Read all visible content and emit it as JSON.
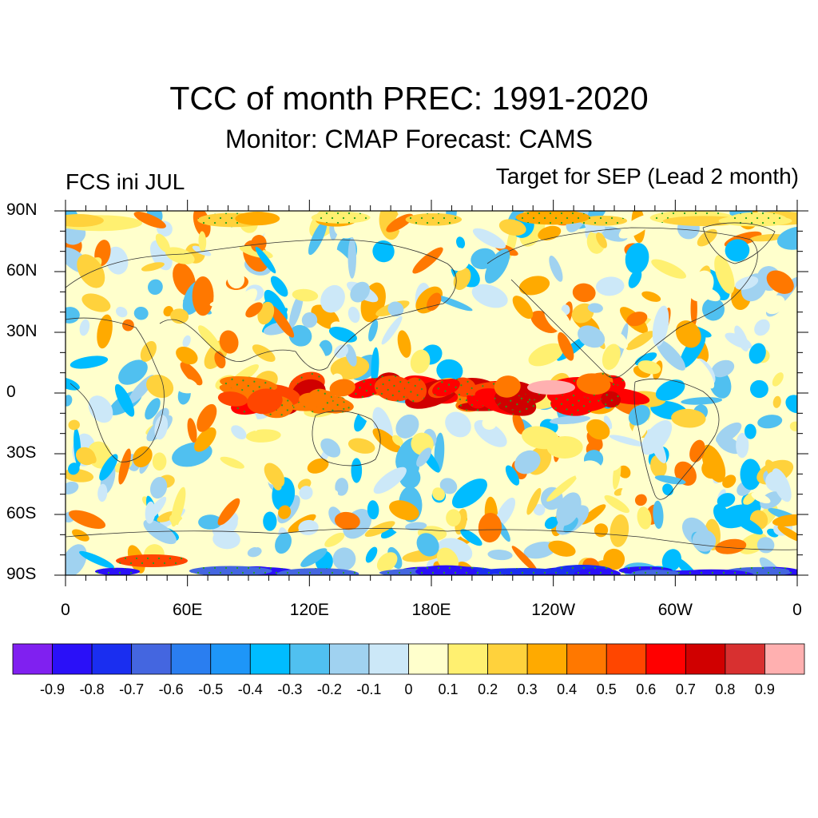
{
  "title": "TCC of month PREC: 1991-2020",
  "subtitle": "Monitor: CMAP   Forecast: CAMS",
  "left_note": "FCS ini JUL",
  "right_note": "Target for SEP (Lead 2 month)",
  "lat_labels": [
    "90N",
    "60N",
    "30N",
    "0",
    "30S",
    "60S",
    "90S"
  ],
  "lon_labels": [
    "0",
    "60E",
    "120E",
    "180E",
    "120W",
    "60W",
    "0"
  ],
  "colorbar": {
    "colors": [
      "#8020f0",
      "#2a10f8",
      "#1a2ef0",
      "#4466e0",
      "#2a7ef0",
      "#1e96f8",
      "#00bcff",
      "#50c0f0",
      "#a0d2f0",
      "#cce8f8",
      "#ffffcc",
      "#fff070",
      "#ffd23c",
      "#ffaa00",
      "#ff7800",
      "#ff4600",
      "#ff0000",
      "#d00000",
      "#d83030",
      "#ffb0b0"
    ],
    "labels": [
      "-0.9",
      "-0.8",
      "-0.7",
      "-0.6",
      "-0.5",
      "-0.4",
      "-0.3",
      "-0.2",
      "-0.1",
      "0",
      "0.1",
      "0.2",
      "0.3",
      "0.4",
      "0.5",
      "0.6",
      "0.7",
      "0.8",
      "0.9"
    ]
  },
  "stipple_color": "#20a020"
}
